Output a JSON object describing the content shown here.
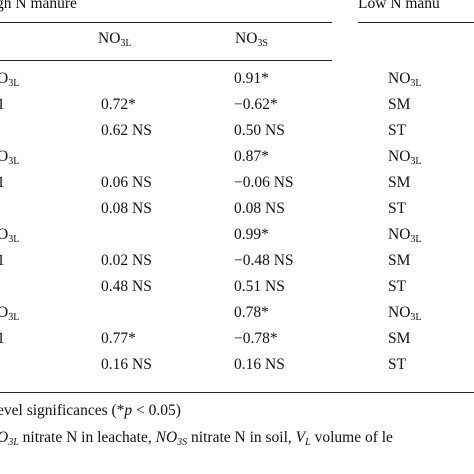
{
  "header": {
    "group_left": "gh N manure",
    "group_right": "Low N manu",
    "col1": {
      "base": "NO",
      "sub": "3L"
    },
    "col2": {
      "base": "NO",
      "sub": "3S"
    }
  },
  "rows": [
    {
      "label_base": "O",
      "label_sub": "3L",
      "c1": "",
      "c2": "0.91*",
      "right_base": "NO",
      "right_sub": "3L"
    },
    {
      "label_base": "1",
      "label_sub": "",
      "c1": "0.72*",
      "c2": "−0.62*",
      "right_base": "SM",
      "right_sub": ""
    },
    {
      "label_base": "",
      "label_sub": "",
      "c1": "0.62 NS",
      "c2": "0.50 NS",
      "right_base": "ST",
      "right_sub": ""
    },
    {
      "label_base": "O",
      "label_sub": "3L",
      "c1": "",
      "c2": "0.87*",
      "right_base": "NO",
      "right_sub": "3L"
    },
    {
      "label_base": "1",
      "label_sub": "",
      "c1": "0.06 NS",
      "c2": "−0.06 NS",
      "right_base": "SM",
      "right_sub": ""
    },
    {
      "label_base": "",
      "label_sub": "",
      "c1": "0.08 NS",
      "c2": "0.08 NS",
      "right_base": "ST",
      "right_sub": ""
    },
    {
      "label_base": "O",
      "label_sub": "3L",
      "c1": "",
      "c2": "0.99*",
      "right_base": "NO",
      "right_sub": "3L"
    },
    {
      "label_base": "1",
      "label_sub": "",
      "c1": "0.02 NS",
      "c2": "−0.48 NS",
      "right_base": "SM",
      "right_sub": ""
    },
    {
      "label_base": "",
      "label_sub": "",
      "c1": "0.48 NS",
      "c2": "0.51 NS",
      "right_base": "ST",
      "right_sub": ""
    },
    {
      "label_base": "O",
      "label_sub": "3L",
      "c1": "",
      "c2": "0.78*",
      "right_base": "NO",
      "right_sub": "3L"
    },
    {
      "label_base": "1",
      "label_sub": "",
      "c1": "0.77*",
      "c2": "−0.78*",
      "right_base": "SM",
      "right_sub": ""
    },
    {
      "label_base": "",
      "label_sub": "",
      "c1": "0.16 NS",
      "c2": "0.16 NS",
      "right_base": "ST",
      "right_sub": ""
    }
  ],
  "footnotes": {
    "line1_text": "evel significances (*",
    "line1_p": "p",
    "line1_rest": " < 0.05)",
    "line2_a_base": "O",
    "line2_a_sub": "3L",
    "line2_a_text": " nitrate N in leachate, ",
    "line2_b_base": "NO",
    "line2_b_sub": "3S",
    "line2_b_text": " nitrate N in soil, ",
    "line2_c_base": "V",
    "line2_c_sub": "L",
    "line2_c_text": " volume of le"
  }
}
